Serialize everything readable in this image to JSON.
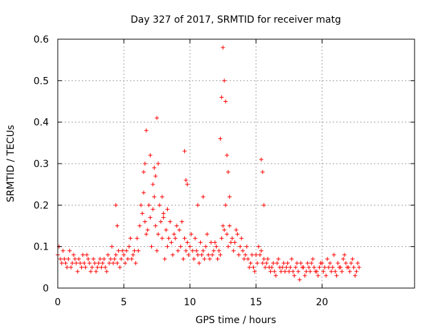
{
  "chart_data": {
    "type": "scatter",
    "title": "Day 327 of 2017, SRMTID for receiver matg",
    "xlabel": "GPS time / hours",
    "ylabel": "SRMTID / TECUs",
    "xlim": [
      0,
      27
    ],
    "ylim": [
      0,
      0.6
    ],
    "x_ticks": [
      "0",
      "5",
      "10",
      "15",
      "20"
    ],
    "x_tick_values": [
      0,
      5,
      10,
      15,
      20
    ],
    "y_ticks": [
      "0",
      "0.1",
      "0.2",
      "0.3",
      "0.4",
      "0.5",
      "0.6"
    ],
    "y_tick_values": [
      0,
      0.1,
      0.2,
      0.3,
      0.4,
      0.5,
      0.6
    ],
    "grid": true,
    "marker": "+",
    "colors": {
      "series": "#ff0000",
      "grid": "#a0a0a0",
      "axes": "#000000"
    },
    "series": [
      {
        "name": "SRMTID",
        "x": [
          0.0,
          0.2,
          0.4,
          0.6,
          0.8,
          1.0,
          1.2,
          1.4,
          1.6,
          1.8,
          2.0,
          2.2,
          2.4,
          2.6,
          2.8,
          3.0,
          3.2,
          3.4,
          3.6,
          3.8,
          4.0,
          4.2,
          4.4,
          4.6,
          4.8,
          5.0,
          5.2,
          5.4,
          5.6,
          5.8,
          6.0,
          6.2,
          6.4,
          6.6,
          6.8,
          7.0,
          7.2,
          7.4,
          7.6,
          7.8,
          8.0,
          8.2,
          8.4,
          8.6,
          8.8,
          9.0,
          9.2,
          9.4,
          9.6,
          9.8,
          10.0,
          10.2,
          10.4,
          10.6,
          10.8,
          11.0,
          11.2,
          11.4,
          11.6,
          11.8,
          12.0,
          12.2,
          12.4,
          12.6,
          12.8,
          13.0,
          13.2,
          13.4,
          13.6,
          13.8,
          14.0,
          14.2,
          14.4,
          14.6,
          14.8,
          15.0,
          15.2,
          15.4,
          15.6,
          15.8,
          16.0,
          16.2,
          16.4,
          16.6,
          16.8,
          17.0,
          17.2,
          17.4,
          17.6,
          17.8,
          18.0,
          18.2,
          18.4,
          18.6,
          18.8,
          19.0,
          19.2,
          19.4,
          19.6,
          19.8,
          20.0,
          20.2,
          20.4,
          20.6,
          20.8,
          21.0,
          21.2,
          21.4,
          21.6,
          21.8,
          22.0,
          22.2,
          22.4,
          22.6,
          22.8,
          0.1,
          0.3,
          0.5,
          0.7,
          0.9,
          1.1,
          1.3,
          1.5,
          1.7,
          1.9,
          2.1,
          2.3,
          2.5,
          2.7,
          2.9,
          3.1,
          3.3,
          3.5,
          3.7,
          3.9,
          4.1,
          4.3,
          4.5,
          4.7,
          4.9,
          5.1,
          5.3,
          5.5,
          5.7,
          5.9,
          6.1,
          6.3,
          6.5,
          6.7,
          6.9,
          7.1,
          7.3,
          7.5,
          7.7,
          7.9,
          8.1,
          8.3,
          8.5,
          8.7,
          8.9,
          9.1,
          9.3,
          9.5,
          9.7,
          9.9,
          10.1,
          10.3,
          10.5,
          10.7,
          10.9,
          11.1,
          11.3,
          11.5,
          11.7,
          11.9,
          12.1,
          12.3,
          12.5,
          12.7,
          12.9,
          13.1,
          13.3,
          13.5,
          13.7,
          13.9,
          14.1,
          14.3,
          14.5,
          14.7,
          14.9,
          15.1,
          15.3,
          15.5,
          15.7,
          15.9,
          16.1,
          16.3,
          16.5,
          16.7,
          16.9,
          17.1,
          17.3,
          17.5,
          17.7,
          17.9,
          18.1,
          18.3,
          18.5,
          18.7,
          18.9,
          19.1,
          19.3,
          19.5,
          19.7,
          19.9,
          20.1,
          20.3,
          20.5,
          20.7,
          20.9,
          21.1,
          21.3,
          21.5,
          21.7,
          21.9,
          22.1,
          22.3,
          22.5,
          22.7,
          4.4,
          4.5,
          6.5,
          6.6,
          6.7,
          7.0,
          7.2,
          7.5,
          7.6,
          7.9,
          8.0,
          9.6,
          9.7,
          9.8,
          10.6,
          11.0,
          12.3,
          12.4,
          12.5,
          12.6,
          12.7,
          12.8,
          12.9,
          13.0,
          15.4,
          15.5,
          15.6,
          7.3,
          7.4,
          8.3
        ],
        "y": [
          0.08,
          0.07,
          0.09,
          0.06,
          0.07,
          0.05,
          0.08,
          0.06,
          0.07,
          0.05,
          0.06,
          0.08,
          0.06,
          0.05,
          0.06,
          0.05,
          0.07,
          0.06,
          0.05,
          0.08,
          0.07,
          0.06,
          0.08,
          0.09,
          0.07,
          0.08,
          0.09,
          0.1,
          0.07,
          0.09,
          0.12,
          0.15,
          0.18,
          0.16,
          0.14,
          0.17,
          0.19,
          0.15,
          0.13,
          0.16,
          0.18,
          0.14,
          0.12,
          0.11,
          0.13,
          0.15,
          0.14,
          0.16,
          0.12,
          0.11,
          0.1,
          0.09,
          0.12,
          0.08,
          0.11,
          0.09,
          0.1,
          0.08,
          0.11,
          0.09,
          0.1,
          0.09,
          0.12,
          0.14,
          0.13,
          0.15,
          0.12,
          0.11,
          0.13,
          0.1,
          0.09,
          0.08,
          0.07,
          0.06,
          0.05,
          0.08,
          0.1,
          0.09,
          0.07,
          0.06,
          0.05,
          0.05,
          0.04,
          0.06,
          0.05,
          0.05,
          0.04,
          0.06,
          0.05,
          0.04,
          0.05,
          0.04,
          0.06,
          0.05,
          0.04,
          0.05,
          0.06,
          0.05,
          0.04,
          0.05,
          0.06,
          0.05,
          0.07,
          0.06,
          0.05,
          0.04,
          0.06,
          0.05,
          0.07,
          0.06,
          0.05,
          0.06,
          0.05,
          0.04,
          0.05,
          0.1,
          0.06,
          0.07,
          0.05,
          0.09,
          0.06,
          0.07,
          0.04,
          0.06,
          0.08,
          0.05,
          0.07,
          0.04,
          0.07,
          0.04,
          0.06,
          0.05,
          0.07,
          0.04,
          0.06,
          0.1,
          0.07,
          0.06,
          0.05,
          0.09,
          0.06,
          0.07,
          0.12,
          0.08,
          0.06,
          0.09,
          0.2,
          0.23,
          0.13,
          0.2,
          0.1,
          0.22,
          0.09,
          0.2,
          0.12,
          0.07,
          0.1,
          0.16,
          0.08,
          0.12,
          0.09,
          0.1,
          0.07,
          0.09,
          0.08,
          0.13,
          0.07,
          0.09,
          0.06,
          0.08,
          0.07,
          0.13,
          0.07,
          0.08,
          0.11,
          0.07,
          0.08,
          0.15,
          0.2,
          0.1,
          0.11,
          0.09,
          0.14,
          0.08,
          0.12,
          0.07,
          0.1,
          0.05,
          0.08,
          0.04,
          0.06,
          0.08,
          0.06,
          0.05,
          0.07,
          0.04,
          0.06,
          0.03,
          0.07,
          0.04,
          0.06,
          0.05,
          0.04,
          0.07,
          0.03,
          0.06,
          0.02,
          0.05,
          0.03,
          0.06,
          0.04,
          0.07,
          0.04,
          0.03,
          0.06,
          0.04,
          0.03,
          0.05,
          0.04,
          0.08,
          0.03,
          0.05,
          0.04,
          0.08,
          0.05,
          0.04,
          0.07,
          0.03,
          0.06,
          0.2,
          0.15,
          0.28,
          0.3,
          0.38,
          0.32,
          0.25,
          0.41,
          0.3,
          0.22,
          0.17,
          0.33,
          0.26,
          0.25,
          0.2,
          0.22,
          0.36,
          0.46,
          0.58,
          0.5,
          0.45,
          0.32,
          0.28,
          0.22,
          0.31,
          0.28,
          0.2,
          0.29,
          0.27,
          0.19
        ]
      }
    ]
  }
}
